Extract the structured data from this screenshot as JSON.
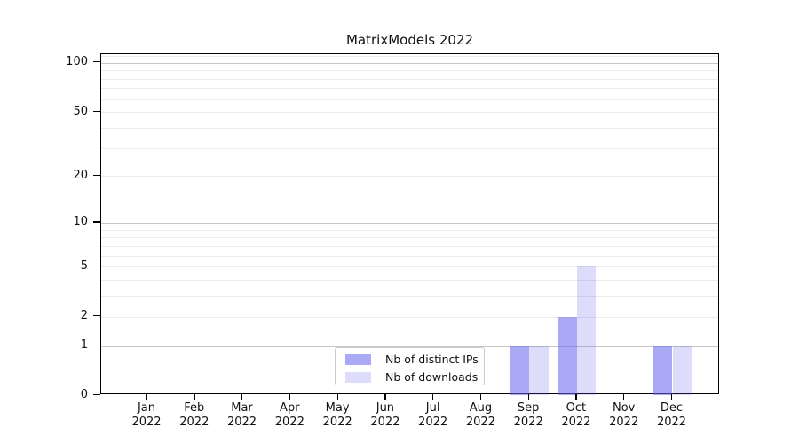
{
  "chart_data": {
    "type": "bar",
    "title": "MatrixModels 2022",
    "categories": [
      "Jan 2022",
      "Feb 2022",
      "Mar 2022",
      "Apr 2022",
      "May 2022",
      "Jun 2022",
      "Jul 2022",
      "Aug 2022",
      "Sep 2022",
      "Oct 2022",
      "Nov 2022",
      "Dec 2022"
    ],
    "x_tick_lines": [
      {
        "m": "Jan",
        "y": "2022"
      },
      {
        "m": "Feb",
        "y": "2022"
      },
      {
        "m": "Mar",
        "y": "2022"
      },
      {
        "m": "Apr",
        "y": "2022"
      },
      {
        "m": "May",
        "y": "2022"
      },
      {
        "m": "Jun",
        "y": "2022"
      },
      {
        "m": "Jul",
        "y": "2022"
      },
      {
        "m": "Aug",
        "y": "2022"
      },
      {
        "m": "Sep",
        "y": "2022"
      },
      {
        "m": "Oct",
        "y": "2022"
      },
      {
        "m": "Nov",
        "y": "2022"
      },
      {
        "m": "Dec",
        "y": "2022"
      }
    ],
    "series": [
      {
        "name": "Nb of distinct IPs",
        "color": "#6666ee",
        "alpha": 0.56,
        "flat_color": "#a8a8f4",
        "values": [
          0,
          0,
          0,
          0,
          0,
          0,
          0,
          0,
          1,
          2,
          0,
          1
        ]
      },
      {
        "name": "Nb of downloads",
        "color": "#6666ee",
        "alpha": 0.22,
        "flat_color": "#dbdbf8",
        "values": [
          0,
          0,
          0,
          0,
          0,
          0,
          0,
          0,
          1,
          5,
          0,
          1
        ]
      }
    ],
    "y_axis": {
      "scale": "log1p",
      "ticks": [
        0,
        1,
        2,
        5,
        10,
        20,
        50,
        100
      ],
      "major_gridlines": [
        1,
        10,
        100
      ],
      "minor_gridlines": [
        3,
        4,
        6,
        7,
        8,
        9,
        30,
        40,
        60,
        70,
        80,
        90,
        110
      ],
      "ylim": [
        0,
        113
      ]
    },
    "xlabel": "",
    "ylabel": "",
    "grid": "horizontal",
    "legend_position": "lower center-left inside plot",
    "colors": {
      "major_grid": "#c6c6c6",
      "minor_grid": "#ebebeb",
      "spine": "#000000",
      "background": "#ffffff"
    }
  }
}
